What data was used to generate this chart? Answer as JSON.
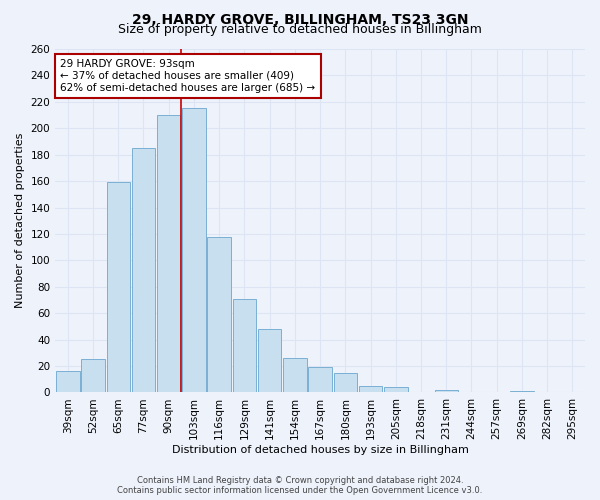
{
  "title": "29, HARDY GROVE, BILLINGHAM, TS23 3GN",
  "subtitle": "Size of property relative to detached houses in Billingham",
  "xlabel": "Distribution of detached houses by size in Billingham",
  "ylabel": "Number of detached properties",
  "bar_labels": [
    "39sqm",
    "52sqm",
    "65sqm",
    "77sqm",
    "90sqm",
    "103sqm",
    "116sqm",
    "129sqm",
    "141sqm",
    "154sqm",
    "167sqm",
    "180sqm",
    "193sqm",
    "205sqm",
    "218sqm",
    "231sqm",
    "244sqm",
    "257sqm",
    "269sqm",
    "282sqm",
    "295sqm"
  ],
  "bar_values": [
    16,
    25,
    159,
    185,
    210,
    215,
    118,
    71,
    48,
    26,
    19,
    15,
    5,
    4,
    0,
    2,
    0,
    0,
    1,
    0,
    0
  ],
  "bar_color": "#c8dff0",
  "bar_edge_color": "#7ab0d4",
  "red_line_index": 4.5,
  "annotation_title": "29 HARDY GROVE: 93sqm",
  "annotation_line1": "← 37% of detached houses are smaller (409)",
  "annotation_line2": "62% of semi-detached houses are larger (685) →",
  "annotation_box_color": "#ffffff",
  "annotation_box_edge_color": "#aa0000",
  "ylim": [
    0,
    260
  ],
  "yticks": [
    0,
    20,
    40,
    60,
    80,
    100,
    120,
    140,
    160,
    180,
    200,
    220,
    240,
    260
  ],
  "footer1": "Contains HM Land Registry data © Crown copyright and database right 2024.",
  "footer2": "Contains public sector information licensed under the Open Government Licence v3.0.",
  "bg_color": "#eef2fb",
  "grid_color": "#dde5f5",
  "title_fontsize": 10,
  "subtitle_fontsize": 9,
  "axis_label_fontsize": 8,
  "tick_fontsize": 7.5,
  "footer_fontsize": 6
}
